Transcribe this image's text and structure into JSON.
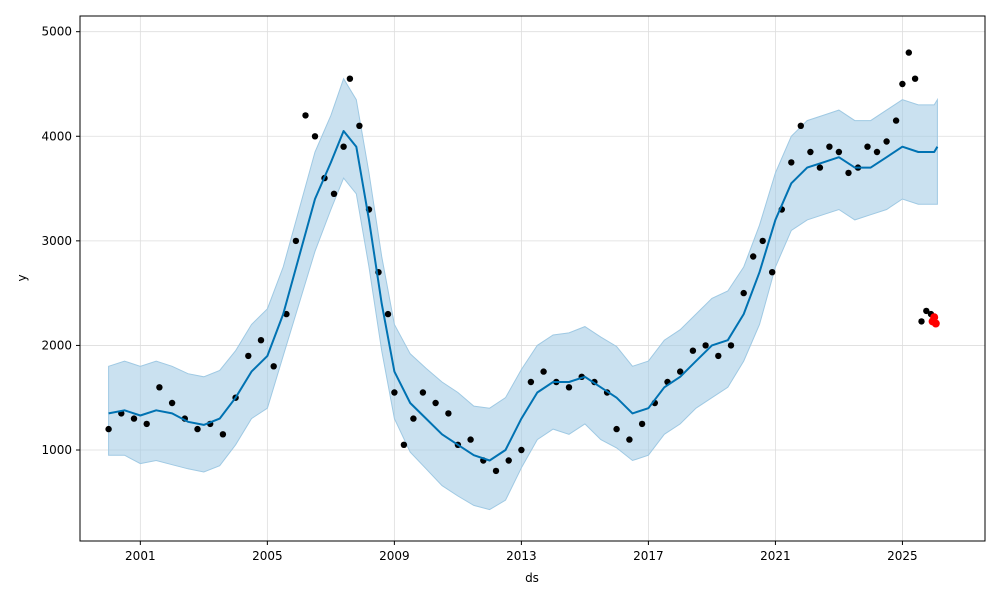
{
  "chart_data": {
    "type": "line",
    "xlabel": "ds",
    "ylabel": "y",
    "x_ticks": [
      "2001",
      "2005",
      "2009",
      "2013",
      "2017",
      "2021",
      "2025"
    ],
    "y_ticks": [
      1000,
      2000,
      3000,
      4000,
      5000
    ],
    "xlim": [
      1999.1,
      2027.6
    ],
    "ylim": [
      130,
      5150
    ],
    "grid": true,
    "colors": {
      "observed": "#000000",
      "forecast_line": "#0072B2",
      "uncertainty_band": "#9FC9E3",
      "highlight": "#FF0000"
    },
    "series": [
      {
        "role": "forecast",
        "x": [
          2000.0,
          2000.5,
          2001.0,
          2001.5,
          2002.0,
          2002.5,
          2003.0,
          2003.5,
          2004.0,
          2004.5,
          2005.0,
          2005.5,
          2006.0,
          2006.5,
          2007.0,
          2007.4,
          2007.8,
          2008.2,
          2008.6,
          2009.0,
          2009.5,
          2010.0,
          2010.5,
          2011.0,
          2011.5,
          2012.0,
          2012.5,
          2013.0,
          2013.5,
          2014.0,
          2014.5,
          2015.0,
          2015.5,
          2016.0,
          2016.5,
          2017.0,
          2017.5,
          2018.0,
          2018.5,
          2019.0,
          2019.5,
          2020.0,
          2020.5,
          2021.0,
          2021.5,
          2022.0,
          2022.5,
          2023.0,
          2023.5,
          2024.0,
          2024.5,
          2025.0,
          2025.5,
          2026.0,
          2026.1
        ],
        "yhat": [
          1350,
          1380,
          1330,
          1380,
          1350,
          1270,
          1240,
          1300,
          1500,
          1750,
          1900,
          2300,
          2850,
          3400,
          3750,
          4050,
          3900,
          3200,
          2400,
          1750,
          1450,
          1300,
          1150,
          1050,
          950,
          900,
          1000,
          1300,
          1550,
          1650,
          1650,
          1700,
          1600,
          1500,
          1350,
          1400,
          1600,
          1700,
          1850,
          2000,
          2050,
          2300,
          2700,
          3200,
          3550,
          3700,
          3750,
          3800,
          3700,
          3700,
          3800,
          3900,
          3850,
          3850,
          3900
        ],
        "yhat_lower": [
          950,
          950,
          870,
          900,
          860,
          820,
          790,
          850,
          1050,
          1300,
          1400,
          1900,
          2400,
          2900,
          3300,
          3600,
          3450,
          2750,
          1950,
          1300,
          980,
          820,
          660,
          560,
          470,
          430,
          520,
          830,
          1100,
          1200,
          1150,
          1250,
          1100,
          1020,
          900,
          950,
          1150,
          1250,
          1400,
          1500,
          1600,
          1850,
          2200,
          2750,
          3100,
          3200,
          3250,
          3300,
          3200,
          3250,
          3300,
          3400,
          3350,
          3350,
          3350
        ],
        "yhat_upper": [
          1800,
          1850,
          1800,
          1850,
          1800,
          1730,
          1700,
          1760,
          1950,
          2200,
          2350,
          2750,
          3300,
          3850,
          4200,
          4550,
          4350,
          3650,
          2850,
          2200,
          1920,
          1780,
          1650,
          1550,
          1420,
          1400,
          1500,
          1770,
          2000,
          2100,
          2120,
          2180,
          2080,
          1990,
          1800,
          1850,
          2050,
          2150,
          2300,
          2450,
          2520,
          2750,
          3150,
          3650,
          4000,
          4150,
          4200,
          4250,
          4150,
          4150,
          4250,
          4350,
          4300,
          4300,
          4350
        ]
      },
      {
        "role": "observed",
        "x": [
          2000.0,
          2000.4,
          2000.8,
          2001.2,
          2001.6,
          2002.0,
          2002.4,
          2002.8,
          2003.2,
          2003.6,
          2004.0,
          2004.4,
          2004.8,
          2005.2,
          2005.6,
          2005.9,
          2006.2,
          2006.5,
          2006.8,
          2007.1,
          2007.4,
          2007.6,
          2007.9,
          2008.2,
          2008.5,
          2008.8,
          2009.0,
          2009.3,
          2009.6,
          2009.9,
          2010.3,
          2010.7,
          2011.0,
          2011.4,
          2011.8,
          2012.2,
          2012.6,
          2013.0,
          2013.3,
          2013.7,
          2014.1,
          2014.5,
          2014.9,
          2015.3,
          2015.7,
          2016.0,
          2016.4,
          2016.8,
          2017.2,
          2017.6,
          2018.0,
          2018.4,
          2018.8,
          2019.2,
          2019.6,
          2020.0,
          2020.3,
          2020.6,
          2020.9,
          2021.2,
          2021.5,
          2021.8,
          2022.1,
          2022.4,
          2022.7,
          2023.0,
          2023.3,
          2023.6,
          2023.9,
          2024.2,
          2024.5,
          2024.8,
          2025.0,
          2025.2,
          2025.4
        ],
        "y": [
          1200,
          1350,
          1300,
          1250,
          1600,
          1450,
          1300,
          1200,
          1250,
          1150,
          1500,
          1900,
          2050,
          1800,
          2300,
          3000,
          4200,
          4000,
          3600,
          3450,
          3900,
          4550,
          4100,
          3300,
          2700,
          2300,
          1550,
          1050,
          1300,
          1550,
          1450,
          1350,
          1050,
          1100,
          900,
          800,
          900,
          1000,
          1650,
          1750,
          1650,
          1600,
          1700,
          1650,
          1550,
          1200,
          1100,
          1250,
          1450,
          1650,
          1750,
          1950,
          2000,
          1900,
          2000,
          2500,
          2850,
          3000,
          2700,
          3300,
          3750,
          4100,
          3850,
          3700,
          3900,
          3850,
          3650,
          3700,
          3900,
          3850,
          3950,
          4150,
          4500,
          4800,
          4550
        ]
      },
      {
        "role": "observed-late",
        "x": [
          2025.6,
          2025.75,
          2025.9
        ],
        "y": [
          2230,
          2330,
          2300
        ]
      },
      {
        "role": "highlight",
        "x": [
          2025.95,
          2026.0,
          2026.05
        ],
        "y": [
          2230,
          2270,
          2210
        ]
      }
    ]
  }
}
